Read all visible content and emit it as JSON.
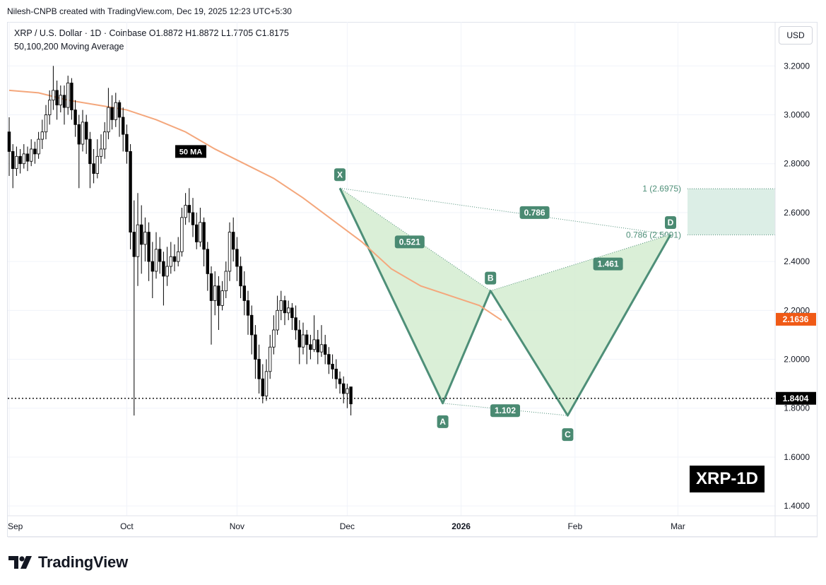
{
  "credit": "Nilesh-CNPB created with TradingView.com, Dec 19, 2025 12:23 UTC+5:30",
  "symbol_line": "XRP / U.S. Dollar · 1D · Coinbase  O1.8872  H1.8872  L1.7705  C1.8175",
  "ma_line": "50,100,200 Moving Average",
  "currency_button": "USD",
  "brand": "TradingView",
  "tag": "XRP-1D",
  "colors": {
    "up_candle": "#ffffff",
    "candle_outline": "#000000",
    "ma_line": "#f4a77c",
    "pattern_fill": "#d3ecd0",
    "pattern_stroke": "#4e8f78",
    "label_bg": "#4a8a72",
    "price_tag_current": "#000000",
    "price_tag_ma": "#f05a16"
  },
  "chart_data": {
    "type": "candlestick",
    "title": "XRP / U.S. Dollar · 1D · Coinbase",
    "y_axis": {
      "ticks": [
        "3.2000",
        "3.0000",
        "2.8000",
        "2.6000",
        "2.4000",
        "2.2000",
        "2.0000",
        "1.8000",
        "1.6000",
        "1.4000"
      ],
      "range": [
        1.36,
        3.38
      ]
    },
    "x_axis": {
      "ticks": [
        "Sep",
        "Oct",
        "Nov",
        "Dec",
        "2026",
        "Feb",
        "Mar"
      ]
    },
    "current_price": {
      "label": "1.8404",
      "value": 1.8404
    },
    "ma_price": {
      "label": "2.1636",
      "value": 2.1636
    },
    "ma_label": "50 MA",
    "ma50": [
      {
        "day": 0,
        "v": 3.1
      },
      {
        "day": 8,
        "v": 3.09
      },
      {
        "day": 16,
        "v": 3.06
      },
      {
        "day": 24,
        "v": 3.04
      },
      {
        "day": 32,
        "v": 3.02
      },
      {
        "day": 40,
        "v": 2.98
      },
      {
        "day": 48,
        "v": 2.93
      },
      {
        "day": 56,
        "v": 2.86
      },
      {
        "day": 64,
        "v": 2.8
      },
      {
        "day": 72,
        "v": 2.74
      },
      {
        "day": 80,
        "v": 2.66
      },
      {
        "day": 88,
        "v": 2.57
      },
      {
        "day": 96,
        "v": 2.48
      },
      {
        "day": 104,
        "v": 2.37
      },
      {
        "day": 112,
        "v": 2.3
      },
      {
        "day": 120,
        "v": 2.26
      },
      {
        "day": 128,
        "v": 2.22
      },
      {
        "day": 134,
        "v": 2.16
      }
    ],
    "candles": [
      [
        2.93,
        2.85,
        2.99,
        2.75
      ],
      [
        2.85,
        2.78,
        2.88,
        2.7
      ],
      [
        2.78,
        2.83,
        2.87,
        2.75
      ],
      [
        2.83,
        2.8,
        2.86,
        2.76
      ],
      [
        2.8,
        2.84,
        2.88,
        2.78
      ],
      [
        2.84,
        2.81,
        2.87,
        2.77
      ],
      [
        2.81,
        2.86,
        2.9,
        2.79
      ],
      [
        2.86,
        2.84,
        2.89,
        2.8
      ],
      [
        2.84,
        2.9,
        2.93,
        2.82
      ],
      [
        2.9,
        2.93,
        2.98,
        2.86
      ],
      [
        2.93,
        3.0,
        3.04,
        2.9
      ],
      [
        3.0,
        3.06,
        3.1,
        2.96
      ],
      [
        3.06,
        3.1,
        3.2,
        3.02
      ],
      [
        3.1,
        3.04,
        3.14,
        2.98
      ],
      [
        3.04,
        3.08,
        3.12,
        3.01
      ],
      [
        3.08,
        3.03,
        3.12,
        2.96
      ],
      [
        3.03,
        3.13,
        3.16,
        3.0
      ],
      [
        3.13,
        3.02,
        3.15,
        2.98
      ],
      [
        3.02,
        2.96,
        3.06,
        2.91
      ],
      [
        2.96,
        2.88,
        3.0,
        2.7
      ],
      [
        2.88,
        2.97,
        3.02,
        2.85
      ],
      [
        2.97,
        2.9,
        3.0,
        2.84
      ],
      [
        2.9,
        2.8,
        2.93,
        2.7
      ],
      [
        2.8,
        2.76,
        2.86,
        2.72
      ],
      [
        2.76,
        2.83,
        2.9,
        2.74
      ],
      [
        2.83,
        2.86,
        2.92,
        2.8
      ],
      [
        2.86,
        2.93,
        2.97,
        2.82
      ],
      [
        2.93,
        3.03,
        3.11,
        2.9
      ],
      [
        3.03,
        2.98,
        3.08,
        2.94
      ],
      [
        2.98,
        3.05,
        3.09,
        2.95
      ],
      [
        3.05,
        2.99,
        3.06,
        2.91
      ],
      [
        2.99,
        2.92,
        3.03,
        2.85
      ],
      [
        2.92,
        2.85,
        2.96,
        2.8
      ],
      [
        2.85,
        2.52,
        2.88,
        2.45
      ],
      [
        2.52,
        2.42,
        2.65,
        1.77
      ],
      [
        2.42,
        2.55,
        2.68,
        2.3
      ],
      [
        2.55,
        2.47,
        2.63,
        2.35
      ],
      [
        2.47,
        2.52,
        2.58,
        2.4
      ],
      [
        2.52,
        2.4,
        2.56,
        2.32
      ],
      [
        2.4,
        2.36,
        2.48,
        2.25
      ],
      [
        2.36,
        2.45,
        2.52,
        2.33
      ],
      [
        2.45,
        2.4,
        2.5,
        2.35
      ],
      [
        2.4,
        2.34,
        2.44,
        2.22
      ],
      [
        2.34,
        2.38,
        2.46,
        2.3
      ],
      [
        2.38,
        2.42,
        2.48,
        2.35
      ],
      [
        2.42,
        2.4,
        2.47,
        2.36
      ],
      [
        2.4,
        2.44,
        2.5,
        2.38
      ],
      [
        2.44,
        2.58,
        2.62,
        2.42
      ],
      [
        2.58,
        2.63,
        2.68,
        2.55
      ],
      [
        2.63,
        2.6,
        2.7,
        2.56
      ],
      [
        2.6,
        2.55,
        2.66,
        2.5
      ],
      [
        2.55,
        2.48,
        2.6,
        2.45
      ],
      [
        2.48,
        2.56,
        2.62,
        2.46
      ],
      [
        2.56,
        2.45,
        2.58,
        2.38
      ],
      [
        2.45,
        2.35,
        2.48,
        2.28
      ],
      [
        2.35,
        2.24,
        2.38,
        2.06
      ],
      [
        2.24,
        2.3,
        2.36,
        2.18
      ],
      [
        2.3,
        2.22,
        2.34,
        2.12
      ],
      [
        2.22,
        2.28,
        2.32,
        2.2
      ],
      [
        2.28,
        2.36,
        2.4,
        2.25
      ],
      [
        2.36,
        2.52,
        2.56,
        2.32
      ],
      [
        2.52,
        2.45,
        2.58,
        2.4
      ],
      [
        2.45,
        2.38,
        2.5,
        2.32
      ],
      [
        2.38,
        2.3,
        2.42,
        2.25
      ],
      [
        2.3,
        2.24,
        2.36,
        2.18
      ],
      [
        2.24,
        2.18,
        2.28,
        2.1
      ],
      [
        2.18,
        2.1,
        2.22,
        2.02
      ],
      [
        2.1,
        2.0,
        2.14,
        1.92
      ],
      [
        2.0,
        1.92,
        2.06,
        1.86
      ],
      [
        1.92,
        1.85,
        1.98,
        1.82
      ],
      [
        1.85,
        1.95,
        2.0,
        1.83
      ],
      [
        1.95,
        2.05,
        2.1,
        1.92
      ],
      [
        2.05,
        2.12,
        2.18,
        2.02
      ],
      [
        2.12,
        2.2,
        2.26,
        2.1
      ],
      [
        2.2,
        2.24,
        2.28,
        2.16
      ],
      [
        2.24,
        2.19,
        2.26,
        2.14
      ],
      [
        2.19,
        2.21,
        2.24,
        2.16
      ],
      [
        2.21,
        2.17,
        2.23,
        2.12
      ],
      [
        2.17,
        2.12,
        2.22,
        2.08
      ],
      [
        2.12,
        2.05,
        2.16,
        1.98
      ],
      [
        2.05,
        2.1,
        2.15,
        2.02
      ],
      [
        2.1,
        2.06,
        2.12,
        1.98
      ],
      [
        2.06,
        2.04,
        2.1,
        2.0
      ],
      [
        2.04,
        2.08,
        2.18,
        2.03
      ],
      [
        2.08,
        2.03,
        2.12,
        1.98
      ],
      [
        2.03,
        2.06,
        2.14,
        2.01
      ],
      [
        2.06,
        2.02,
        2.1,
        1.98
      ],
      [
        2.02,
        1.98,
        2.05,
        1.94
      ],
      [
        1.98,
        1.96,
        2.02,
        1.92
      ],
      [
        1.96,
        1.92,
        2.0,
        1.88
      ],
      [
        1.92,
        1.9,
        1.95,
        1.86
      ],
      [
        1.9,
        1.86,
        1.93,
        1.82
      ],
      [
        1.86,
        1.88,
        1.9,
        1.8
      ],
      [
        1.8872,
        1.8175,
        1.8872,
        1.7705
      ]
    ],
    "harmonic_pattern": {
      "points": [
        {
          "label": "X",
          "day": 90,
          "price": 2.7
        },
        {
          "label": "A",
          "day": 118,
          "price": 1.82
        },
        {
          "label": "B",
          "day": 131,
          "price": 2.28
        },
        {
          "label": "C",
          "day": 152,
          "price": 1.77
        },
        {
          "label": "D",
          "day": 180,
          "price": 2.51
        }
      ],
      "ratios": [
        {
          "label": "0.521",
          "day": 109,
          "price": 2.48
        },
        {
          "label": "0.786",
          "day": 143,
          "price": 2.6
        },
        {
          "label": "1.461",
          "day": 163,
          "price": 2.39
        },
        {
          "label": "1.102",
          "day": 135,
          "price": 1.79
        }
      ]
    },
    "prz_zone": {
      "upper_label": "1 (2.6975)",
      "upper": 2.6975,
      "lower_label": "0.786 (2.5091)",
      "lower": 2.5091
    }
  }
}
